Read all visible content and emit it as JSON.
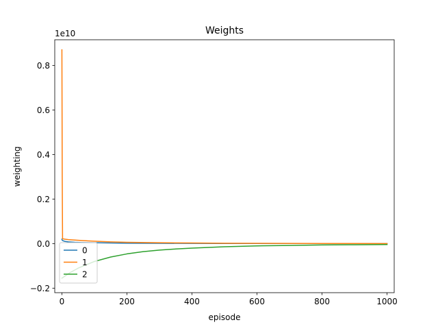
{
  "chart_data": {
    "type": "line",
    "title": "Weights",
    "xlabel": "episode",
    "ylabel": "weighting",
    "y_offset_label": "1e10",
    "y_scale": 10000000000,
    "xlim": [
      -22,
      1022
    ],
    "ylim": [
      -0.22,
      0.915
    ],
    "x_ticks": [
      0,
      200,
      400,
      600,
      800,
      1000
    ],
    "x_tick_labels": [
      "0",
      "200",
      "400",
      "600",
      "800",
      "1000"
    ],
    "y_ticks": [
      -0.2,
      0.0,
      0.2,
      0.4,
      0.6,
      0.8
    ],
    "y_tick_labels": [
      "−0.2",
      "0.0",
      "0.2",
      "0.4",
      "0.6",
      "0.8"
    ],
    "grid": false,
    "legend_position": "lower-left",
    "series": [
      {
        "name": "0",
        "color": "#1f77b4",
        "x": [
          0,
          1,
          5,
          10,
          20,
          40,
          60,
          100,
          150,
          200,
          300,
          400,
          500,
          600,
          700,
          800,
          900,
          1000
        ],
        "y": [
          0.02,
          0.015,
          0.012,
          0.01,
          0.008,
          0.006,
          0.005,
          0.004,
          0.003,
          0.002,
          0.0015,
          0.001,
          0.0008,
          0.0006,
          0.0005,
          0.0004,
          0.0003,
          0.0002
        ]
      },
      {
        "name": "1",
        "color": "#ff7f0e",
        "x": [
          0,
          1,
          2,
          3,
          5,
          10,
          20,
          40,
          60,
          100,
          150,
          200,
          300,
          400,
          500,
          600,
          700,
          800,
          900,
          1000
        ],
        "y": [
          0.87,
          0.3,
          0.023,
          0.022,
          0.021,
          0.02,
          0.018,
          0.016,
          0.014,
          0.011,
          0.008,
          0.006,
          0.004,
          0.003,
          0.002,
          0.0015,
          0.001,
          0.0008,
          0.0005,
          0.0004
        ]
      },
      {
        "name": "2",
        "color": "#2ca02c",
        "x": [
          0,
          10,
          25,
          50,
          100,
          150,
          200,
          250,
          300,
          350,
          400,
          450,
          500,
          600,
          700,
          800,
          900,
          1000
        ],
        "y": [
          -0.155,
          -0.145,
          -0.13,
          -0.11,
          -0.08,
          -0.06,
          -0.046,
          -0.036,
          -0.029,
          -0.024,
          -0.02,
          -0.017,
          -0.014,
          -0.01,
          -0.008,
          -0.006,
          -0.005,
          -0.004
        ]
      }
    ]
  }
}
